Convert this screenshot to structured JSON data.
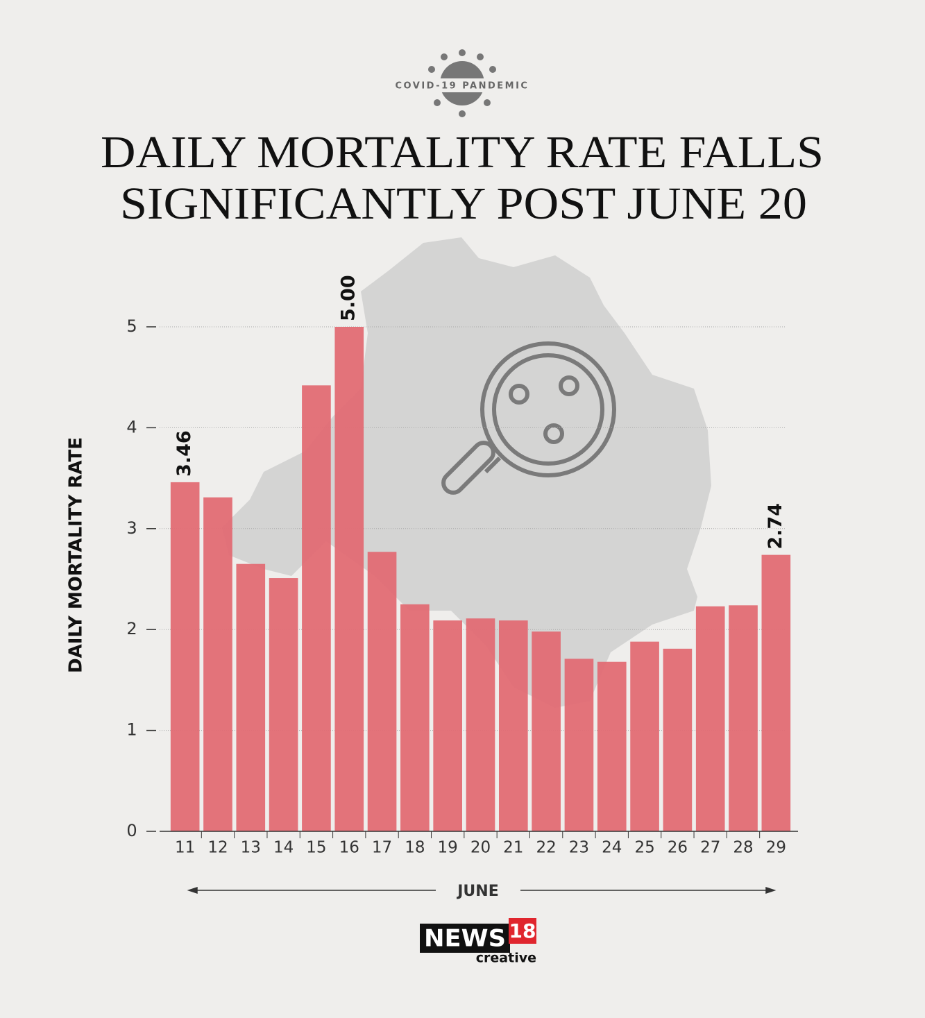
{
  "header": {
    "kicker": "COVID-19 PANDEMIC"
  },
  "chart_data": {
    "type": "bar",
    "title": [
      "DAILY MORTALITY RATE FALLS",
      "SIGNIFICANTLY POST JUNE 20"
    ],
    "x_label": "JUNE",
    "y_label": "DAILY MORTALITY RATE",
    "categories": [
      "11",
      "12",
      "13",
      "14",
      "15",
      "16",
      "17",
      "18",
      "19",
      "20",
      "21",
      "22",
      "23",
      "24",
      "25",
      "26",
      "27",
      "28",
      "29"
    ],
    "values": [
      3.46,
      3.31,
      2.65,
      2.51,
      4.42,
      5.0,
      2.77,
      2.25,
      2.09,
      2.11,
      2.09,
      1.98,
      1.71,
      1.68,
      1.88,
      1.81,
      2.23,
      2.24,
      2.74
    ],
    "value_labels": [
      "3.46",
      null,
      null,
      null,
      null,
      "5.00",
      null,
      null,
      null,
      null,
      null,
      null,
      null,
      null,
      null,
      null,
      null,
      null,
      "2.74"
    ],
    "color": "#e26c74",
    "ylim": [
      0,
      5
    ],
    "yticks": [
      0,
      1,
      2,
      3,
      4,
      5
    ],
    "grid": true
  },
  "logo": {
    "name": "NEWS",
    "number": "18",
    "tagline": "creative"
  }
}
